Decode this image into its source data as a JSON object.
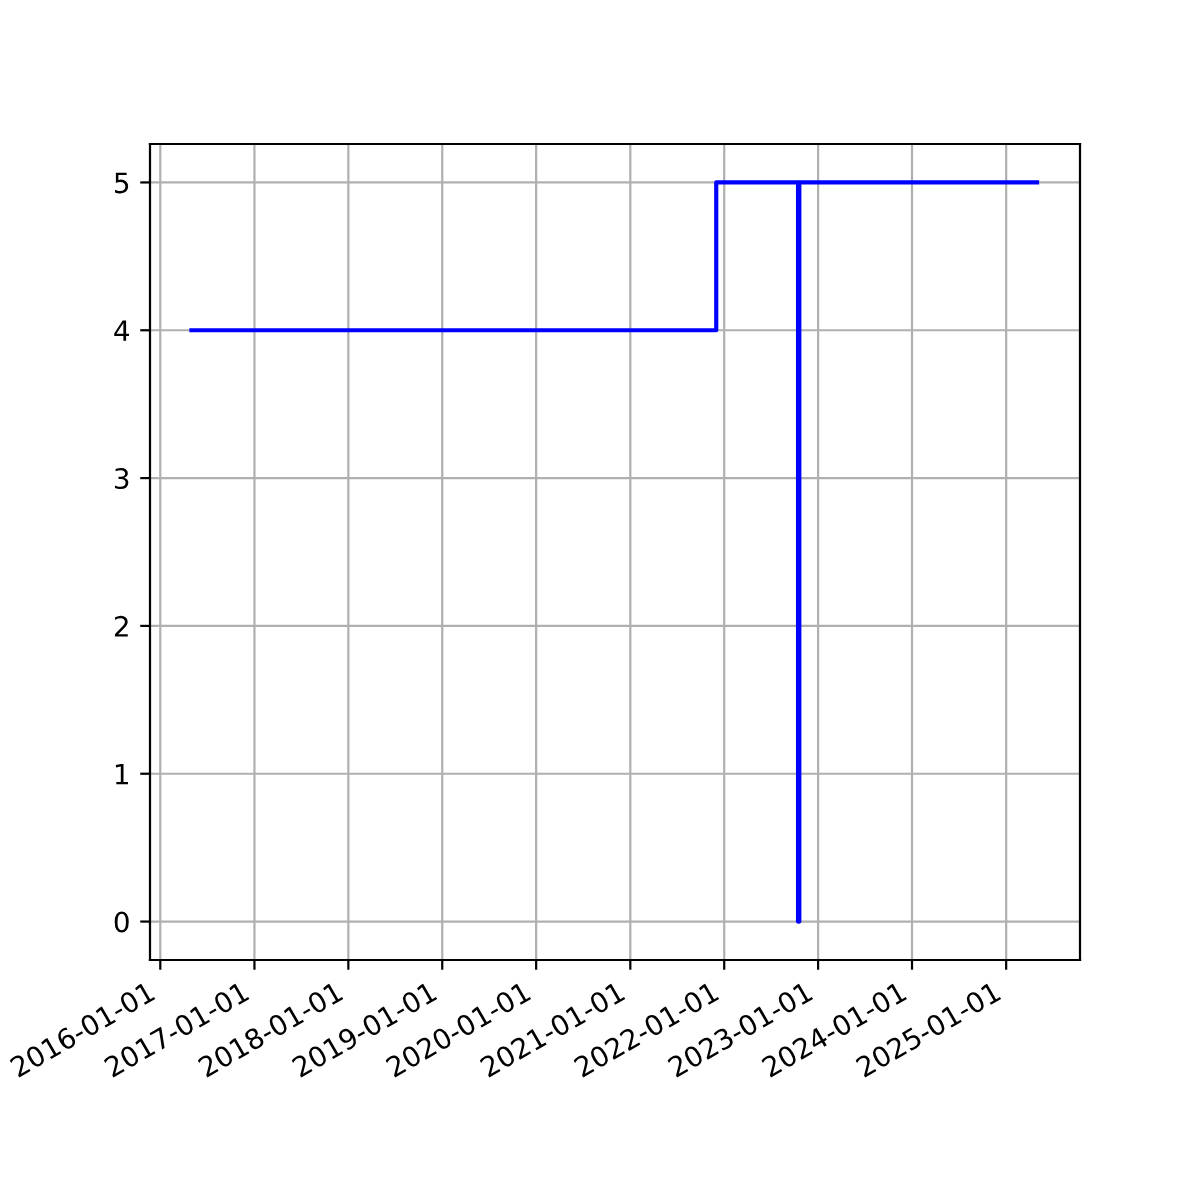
{
  "chart_data": {
    "type": "step",
    "x": [
      "2016-05-01",
      "2021-12-01",
      "2022-10-15",
      "2022-10-20",
      "2025-05-01"
    ],
    "series": [
      {
        "color": "#0000ff",
        "values": [
          4,
          5,
          0,
          5,
          5
        ]
      }
    ],
    "xlim": [
      "2015-11-22",
      "2025-10-15"
    ],
    "ylim": [
      -0.26,
      5.26
    ],
    "xticks": [
      "2016-01-01",
      "2017-01-01",
      "2018-01-01",
      "2019-01-01",
      "2020-01-01",
      "2021-01-01",
      "2022-01-01",
      "2023-01-01",
      "2024-01-01",
      "2025-01-01"
    ],
    "yticks": [
      0,
      1,
      2,
      3,
      4,
      5
    ],
    "grid": true,
    "line_style": "solid",
    "marker": "none"
  }
}
